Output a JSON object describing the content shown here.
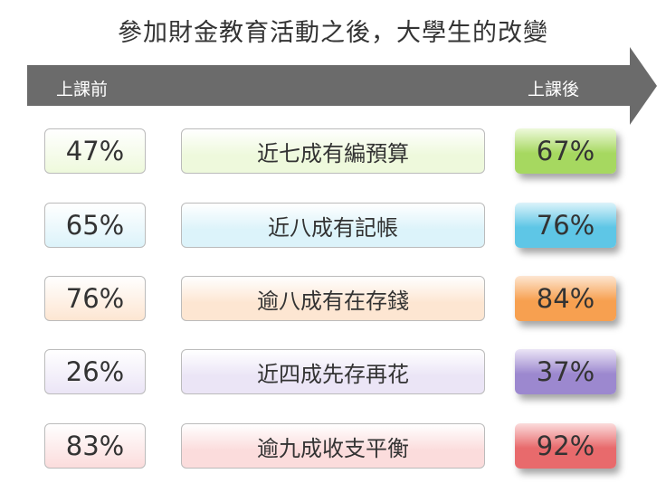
{
  "title": "參加財金教育活動之後，大學生的改變",
  "arrow": {
    "before_label": "上課前",
    "after_label": "上課後",
    "color": "#6b6b6b"
  },
  "rows": [
    {
      "before": "47%",
      "text": "近七成有編預算",
      "after": "67%",
      "light": "#eef9dc",
      "accent": "#a6d860"
    },
    {
      "before": "65%",
      "text": "近八成有記帳",
      "after": "76%",
      "light": "#dcf3fa",
      "accent": "#5ec6e6"
    },
    {
      "before": "76%",
      "text": "逾八成有在存錢",
      "after": "84%",
      "light": "#fde6d2",
      "accent": "#f7a050"
    },
    {
      "before": "26%",
      "text": "近四成先存再花",
      "after": "37%",
      "light": "#ebe5f6",
      "accent": "#9c88cf"
    },
    {
      "before": "83%",
      "text": "逾九成收支平衡",
      "after": "92%",
      "light": "#fbdcdc",
      "accent": "#e86a6c"
    }
  ]
}
